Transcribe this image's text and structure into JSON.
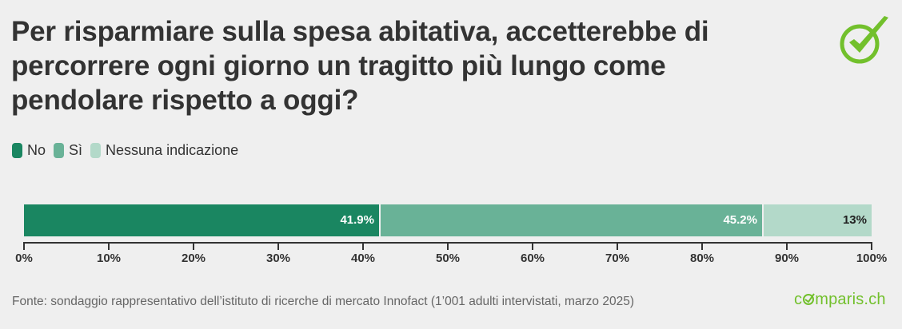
{
  "title": "Per risparmiare sulla spesa abitativa, accetterebbe di percorrere ogni giorno un tragitto più lungo come pendolare rispetto a oggi?",
  "title_lines": [
    "Per risparmiare sulla spesa abitativa, accetterebbe di",
    "percorrere ogni giorno un tragitto più lungo come",
    "pendolare rispetto a oggi?"
  ],
  "legend": [
    {
      "label": "No",
      "color": "#1a8661"
    },
    {
      "label": "Sì",
      "color": "#69b297"
    },
    {
      "label": "Nessuna indicazione",
      "color": "#b3d9c9"
    }
  ],
  "bars": [
    {
      "name": "No",
      "value": 41.9,
      "label": "41.9%",
      "color": "#1a8661",
      "text_color": "#ffffff"
    },
    {
      "name": "Sì",
      "value": 45.2,
      "label": "45.2%",
      "color": "#69b297",
      "text_color": "#ffffff"
    },
    {
      "name": "Nessuna indicazione",
      "value": 13,
      "label": "13%",
      "color": "#b3d9c9",
      "text_color": "#222222"
    }
  ],
  "axis_ticks": [
    "0%",
    "10%",
    "20%",
    "30%",
    "40%",
    "50%",
    "60%",
    "70%",
    "80%",
    "90%",
    "100%"
  ],
  "source": "Fonte: sondaggio rappresentativo dell’istituto di ricerche di mercato Innofact (1’001 adulti intervistati, marzo 2025)",
  "brand": {
    "prefix": "c",
    "suffix": "mparis.ch",
    "color": "#72c02c"
  },
  "chart_data": {
    "type": "bar",
    "orientation": "horizontal-stacked",
    "title": "Per risparmiare sulla spesa abitativa, accetterebbe di percorrere ogni giorno un tragitto più lungo come pendolare rispetto a oggi?",
    "categories": [
      ""
    ],
    "series": [
      {
        "name": "No",
        "values": [
          41.9
        ]
      },
      {
        "name": "Sì",
        "values": [
          45.2
        ]
      },
      {
        "name": "Nessuna indicazione",
        "values": [
          13
        ]
      }
    ],
    "xlabel": "",
    "ylabel": "",
    "xlim": [
      0,
      100
    ],
    "tick_labels": [
      "0%",
      "10%",
      "20%",
      "30%",
      "40%",
      "50%",
      "60%",
      "70%",
      "80%",
      "90%",
      "100%"
    ],
    "grid": false,
    "legend_position": "top-left",
    "source": "Fonte: sondaggio rappresentativo dell’istituto di ricerche di mercato Innofact (1’001 adulti intervistati, marzo 2025)"
  }
}
